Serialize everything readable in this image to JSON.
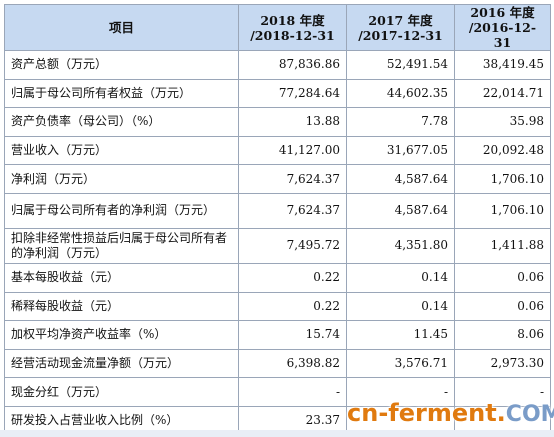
{
  "table": {
    "header": {
      "item": "项目",
      "col1_line1": "2018 年度",
      "col1_line2": "/2018-12-31",
      "col2_line1": "2017 年度",
      "col2_line2": "/2017-12-31",
      "col3_line1": "2016 年度",
      "col3_line2": "/2016-12-31"
    },
    "rows": [
      {
        "label": "资产总额（万元）",
        "y2018": "87,836.86",
        "y2017": "52,491.54",
        "y2016": "38,419.45"
      },
      {
        "label": "归属于母公司所有者权益（万元）",
        "y2018": "77,284.64",
        "y2017": "44,602.35",
        "y2016": "22,014.71"
      },
      {
        "label": "资产负债率（母公司）（%）",
        "y2018": "13.88",
        "y2017": "7.78",
        "y2016": "35.98"
      },
      {
        "label": "营业收入（万元）",
        "y2018": "41,127.00",
        "y2017": "31,677.05",
        "y2016": "20,092.48"
      },
      {
        "label": "净利润（万元）",
        "y2018": "7,624.37",
        "y2017": "4,587.64",
        "y2016": "1,706.10"
      },
      {
        "label": "归属于母公司所有者的净利润（万元）",
        "y2018": "7,624.37",
        "y2017": "4,587.64",
        "y2016": "1,706.10"
      },
      {
        "label": "扣除非经常性损益后归属于母公司所有者的净利润（万元）",
        "y2018": "7,495.72",
        "y2017": "4,351.80",
        "y2016": "1,411.88"
      },
      {
        "label": "基本每股收益（元）",
        "y2018": "0.22",
        "y2017": "0.14",
        "y2016": "0.06"
      },
      {
        "label": "稀释每股收益（元）",
        "y2018": "0.22",
        "y2017": "0.14",
        "y2016": "0.06"
      },
      {
        "label": "加权平均净资产收益率（%）",
        "y2018": "15.74",
        "y2017": "11.45",
        "y2016": "8.06"
      },
      {
        "label": "经营活动现金流量净额（万元）",
        "y2018": "6,398.82",
        "y2017": "3,576.71",
        "y2016": "2,973.30"
      },
      {
        "label": "现金分红（万元）",
        "y2018": "-",
        "y2017": "-",
        "y2016": "-"
      },
      {
        "label": "研发投入占营业收入比例（%）",
        "y2018": "23.37",
        "y2017": "",
        "y2016": ""
      }
    ]
  },
  "watermark": {
    "main": "cn-ferment",
    "dot": ".",
    "tld": "COM"
  }
}
